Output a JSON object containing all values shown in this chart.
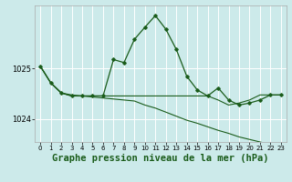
{
  "bg_color": "#cceaea",
  "grid_color": "#ffffff",
  "line_color": "#1a5c1a",
  "marker_color": "#1a5c1a",
  "xlabel": "Graphe pression niveau de la mer (hPa)",
  "xlabel_fontsize": 7.5,
  "ylabel_ticks": [
    1024,
    1025
  ],
  "xlim": [
    -0.5,
    23.5
  ],
  "ylim": [
    1023.55,
    1026.25
  ],
  "xticks": [
    0,
    1,
    2,
    3,
    4,
    5,
    6,
    7,
    8,
    9,
    10,
    11,
    12,
    13,
    14,
    15,
    16,
    17,
    18,
    19,
    20,
    21,
    22,
    23
  ],
  "series1_x": [
    0,
    1,
    2,
    3,
    4,
    5,
    6,
    7,
    8,
    9,
    10,
    11,
    12,
    13,
    14,
    15,
    16,
    17,
    18,
    19,
    20,
    21,
    22,
    23
  ],
  "series1_y": [
    1025.05,
    1024.72,
    1024.52,
    1024.46,
    1024.46,
    1024.46,
    1024.46,
    1025.18,
    1025.12,
    1025.58,
    1025.82,
    1026.05,
    1025.78,
    1025.38,
    1024.85,
    1024.58,
    1024.46,
    1024.62,
    1024.38,
    1024.28,
    1024.32,
    1024.38,
    1024.48,
    1024.48
  ],
  "series2_x": [
    0,
    1,
    2,
    3,
    4,
    5,
    6,
    7,
    8,
    9,
    10,
    11,
    12,
    13,
    14,
    15,
    16,
    17,
    18,
    19,
    20,
    21,
    22,
    23
  ],
  "series2_y": [
    1025.05,
    1024.72,
    1024.52,
    1024.46,
    1024.46,
    1024.46,
    1024.46,
    1024.46,
    1024.46,
    1024.46,
    1024.46,
    1024.46,
    1024.46,
    1024.46,
    1024.46,
    1024.46,
    1024.46,
    1024.38,
    1024.28,
    1024.32,
    1024.38,
    1024.48,
    1024.48,
    1024.48
  ],
  "series3_x": [
    0,
    1,
    2,
    3,
    4,
    5,
    6,
    7,
    8,
    9,
    10,
    11,
    12,
    13,
    14,
    15,
    16,
    17,
    18,
    19,
    20,
    21,
    22,
    23
  ],
  "series3_y": [
    1025.05,
    1024.72,
    1024.52,
    1024.48,
    1024.46,
    1024.44,
    1024.42,
    1024.4,
    1024.38,
    1024.36,
    1024.28,
    1024.22,
    1024.14,
    1024.06,
    1023.98,
    1023.92,
    1023.85,
    1023.78,
    1023.72,
    1023.65,
    1023.6,
    1023.55,
    1023.5,
    1023.46
  ]
}
